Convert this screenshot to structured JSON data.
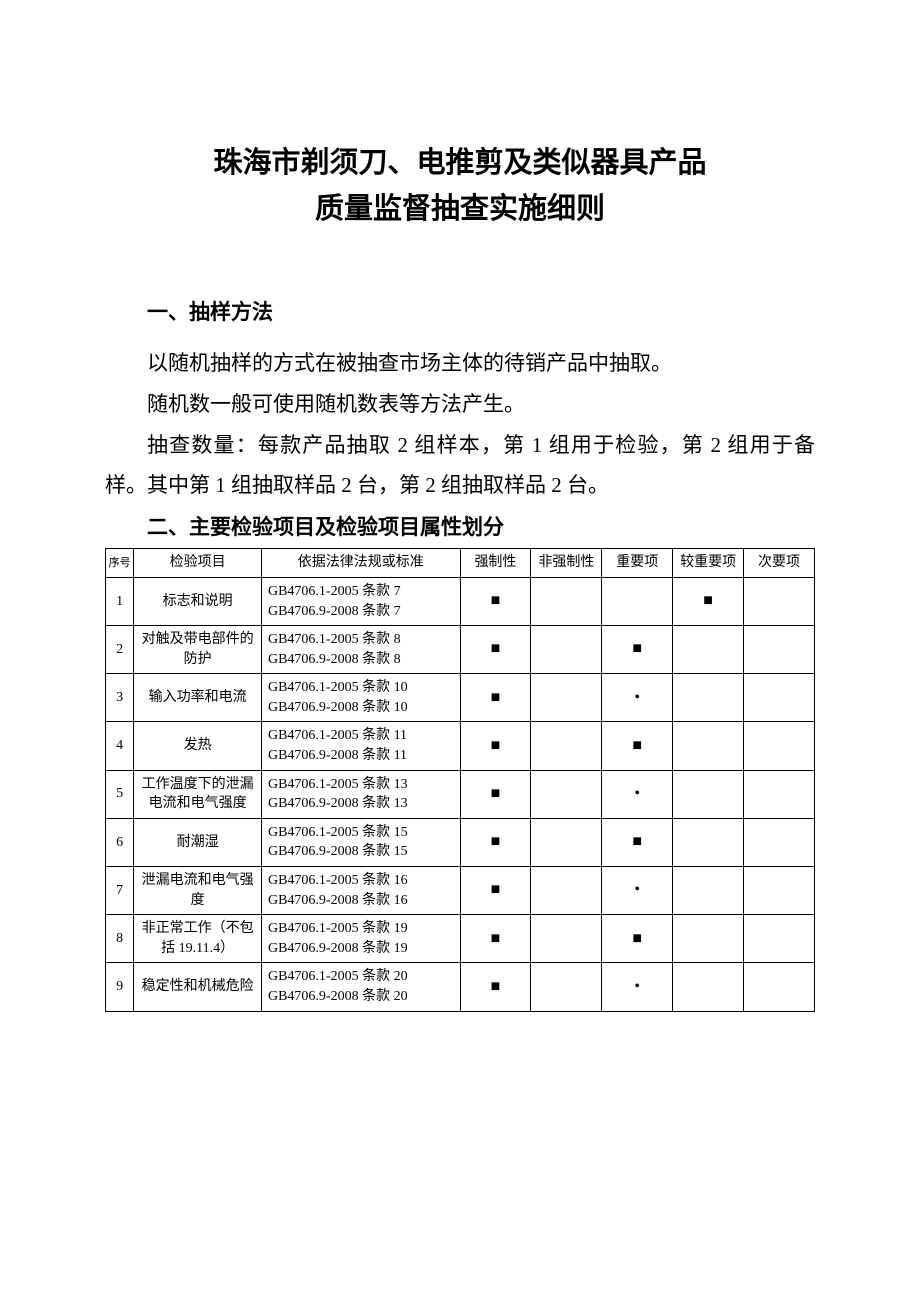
{
  "title_line1": "珠海市剃须刀、电推剪及类似器具产品",
  "title_line2": "质量监督抽查实施细则",
  "section1": {
    "heading": "一、抽样方法",
    "para1": "以随机抽样的方式在被抽查市场主体的待销产品中抽取。",
    "para2": "随机数一般可使用随机数表等方法产生。",
    "para3": "抽查数量：每款产品抽取 2 组样本，第 1 组用于检验，第 2 组用于备样。其中第 1 组抽取样品 2 台，第 2 组抽取样品 2 台。"
  },
  "section2_heading": "二、主要检验项目及检验项目属性划分",
  "table": {
    "headers": {
      "seq": "序号",
      "item": "检验项目",
      "basis": "依据法律法规或标准",
      "mandatory": "强制性",
      "non_mandatory": "非强制性",
      "important": "重要项",
      "more_important": "较重要项",
      "secondary": "次要项"
    },
    "square_mark": "■",
    "dot_mark": "•",
    "rows": [
      {
        "seq": "1",
        "item": "标志和说明",
        "basis_a": "GB4706.1-2005 条款 7",
        "basis_b": "GB4706.9-2008 条款 7",
        "mandatory": "■",
        "non_mandatory": "",
        "important": "",
        "more_important": "■",
        "secondary": ""
      },
      {
        "seq": "2",
        "item": "对触及带电部件的防护",
        "basis_a": "GB4706.1-2005 条款 8",
        "basis_b": "GB4706.9-2008 条款 8",
        "mandatory": "■",
        "non_mandatory": "",
        "important": "■",
        "more_important": "",
        "secondary": ""
      },
      {
        "seq": "3",
        "item": "输入功率和电流",
        "basis_a": "GB4706.1-2005 条款 10",
        "basis_b": "GB4706.9-2008 条款 10",
        "mandatory": "■",
        "non_mandatory": "",
        "important": "•",
        "more_important": "",
        "secondary": ""
      },
      {
        "seq": "4",
        "item": "发热",
        "basis_a": "GB4706.1-2005 条款 11",
        "basis_b": "GB4706.9-2008 条款 11",
        "mandatory": "■",
        "non_mandatory": "",
        "important": "■",
        "more_important": "",
        "secondary": ""
      },
      {
        "seq": "5",
        "item": "工作温度下的泄漏电流和电气强度",
        "basis_a": "GB4706.1-2005 条款 13",
        "basis_b": "GB4706.9-2008 条款 13",
        "mandatory": "■",
        "non_mandatory": "",
        "important": "•",
        "more_important": "",
        "secondary": ""
      },
      {
        "seq": "6",
        "item": "耐潮湿",
        "basis_a": "GB4706.1-2005 条款 15",
        "basis_b": "GB4706.9-2008 条款 15",
        "mandatory": "■",
        "non_mandatory": "",
        "important": "■",
        "more_important": "",
        "secondary": ""
      },
      {
        "seq": "7",
        "item": "泄漏电流和电气强度",
        "basis_a": "GB4706.1-2005 条款 16",
        "basis_b": "GB4706.9-2008 条款 16",
        "mandatory": "■",
        "non_mandatory": "",
        "important": "•",
        "more_important": "",
        "secondary": ""
      },
      {
        "seq": "8",
        "item": "非正常工作（不包括 19.11.4）",
        "basis_a": "GB4706.1-2005 条款 19",
        "basis_b": "GB4706.9-2008 条款 19",
        "mandatory": "■",
        "non_mandatory": "",
        "important": "■",
        "more_important": "",
        "secondary": ""
      },
      {
        "seq": "9",
        "item": "稳定性和机械危险",
        "basis_a": "GB4706.1-2005 条款 20",
        "basis_b": "GB4706.9-2008 条款 20",
        "mandatory": "■",
        "non_mandatory": "",
        "important": "•",
        "more_important": "",
        "secondary": ""
      }
    ]
  }
}
